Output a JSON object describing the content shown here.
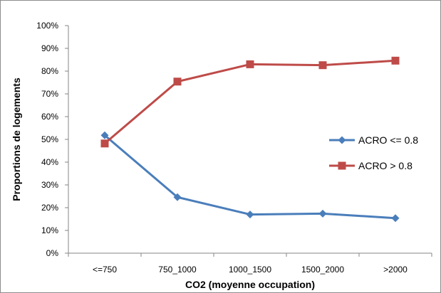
{
  "chart_data": {
    "type": "line",
    "xlabel": "CO2 (moyenne occupation)",
    "ylabel": "Proportions de logements",
    "categories": [
      "<=750",
      "750_1000",
      "1000_1500",
      "1500_2000",
      ">2000"
    ],
    "ylim": [
      0,
      100
    ],
    "yticks": [
      "0%",
      "10%",
      "20%",
      "30%",
      "40%",
      "50%",
      "60%",
      "70%",
      "80%",
      "90%",
      "100%"
    ],
    "grid": false,
    "legend_placement": "right",
    "series": [
      {
        "name": "ACRO <= 0.8",
        "color": "#4a7ebb",
        "marker": "diamond",
        "values": [
          51.8,
          24.6,
          17.0,
          17.4,
          15.4
        ]
      },
      {
        "name": "ACRO > 0.8",
        "color": "#be4b48",
        "marker": "square",
        "values": [
          48.2,
          75.4,
          83.0,
          82.6,
          84.6
        ]
      }
    ]
  }
}
